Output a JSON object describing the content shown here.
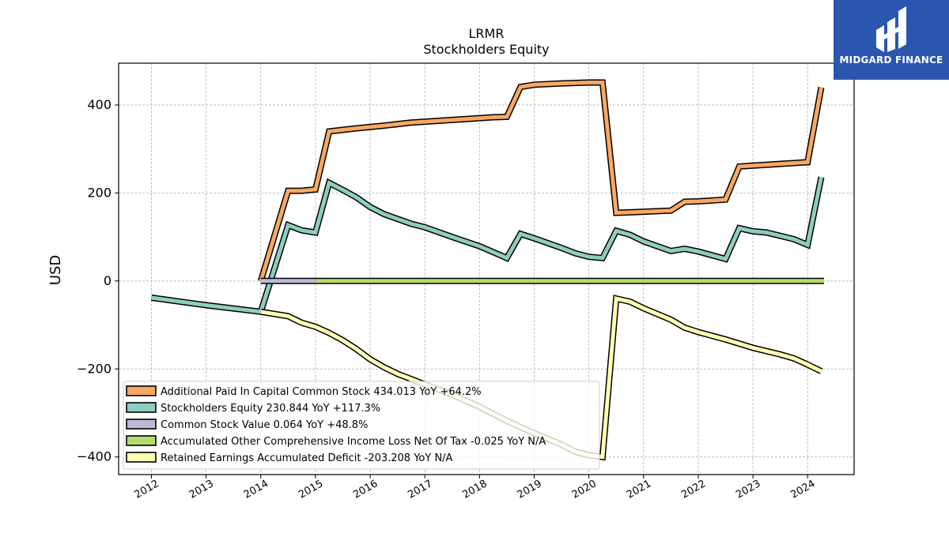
{
  "logo": {
    "text": "MIDGARD FINANCE"
  },
  "chart_data": {
    "type": "line",
    "title": "LRMR",
    "subtitle": "Stockholders  Equity",
    "ylabel": "USD",
    "xlim": [
      2011.4,
      2024.85
    ],
    "ylim": [
      -440,
      495
    ],
    "yticks": [
      400,
      200,
      0,
      -200,
      -400
    ],
    "ytick_labels": [
      "400",
      "200",
      "0",
      "−200",
      "−400"
    ],
    "xticks": [
      2012,
      2013,
      2014,
      2015,
      2016,
      2017,
      2018,
      2019,
      2020,
      2021,
      2022,
      2023,
      2024
    ],
    "grid": true,
    "legend_position": "lower-left",
    "series": [
      {
        "name": "Additional Paid In Capital Common Stock  434.013 YoY +64.2%",
        "color": "#f6a864",
        "points": [
          [
            2014.0,
            0
          ],
          [
            2014.5,
            205
          ],
          [
            2014.75,
            205
          ],
          [
            2015.0,
            208
          ],
          [
            2015.25,
            340
          ],
          [
            2015.75,
            347
          ],
          [
            2016.25,
            353
          ],
          [
            2016.75,
            360
          ],
          [
            2017.25,
            364
          ],
          [
            2017.75,
            368
          ],
          [
            2018.25,
            372
          ],
          [
            2018.5,
            373
          ],
          [
            2018.75,
            441
          ],
          [
            2019.0,
            446
          ],
          [
            2019.5,
            449
          ],
          [
            2020.0,
            451
          ],
          [
            2020.25,
            451
          ],
          [
            2020.5,
            155
          ],
          [
            2020.75,
            156
          ],
          [
            2021.5,
            160
          ],
          [
            2021.75,
            180
          ],
          [
            2022.0,
            181
          ],
          [
            2022.5,
            185
          ],
          [
            2022.75,
            260
          ],
          [
            2023.0,
            262
          ],
          [
            2023.75,
            268
          ],
          [
            2024.0,
            270
          ],
          [
            2024.25,
            440
          ]
        ]
      },
      {
        "name": "Stockholders Equity  230.844 YoY +117.3%",
        "color": "#8ecdc0",
        "points": [
          [
            2012.0,
            -38
          ],
          [
            2013.0,
            -55
          ],
          [
            2014.0,
            -70
          ],
          [
            2014.5,
            127
          ],
          [
            2014.75,
            115
          ],
          [
            2015.0,
            110
          ],
          [
            2015.25,
            223
          ],
          [
            2015.5,
            207
          ],
          [
            2015.75,
            190
          ],
          [
            2016.0,
            168
          ],
          [
            2016.25,
            152
          ],
          [
            2016.75,
            130
          ],
          [
            2017.0,
            122
          ],
          [
            2017.5,
            100
          ],
          [
            2018.0,
            79
          ],
          [
            2018.5,
            52
          ],
          [
            2018.75,
            107
          ],
          [
            2019.0,
            97
          ],
          [
            2019.5,
            75
          ],
          [
            2019.75,
            63
          ],
          [
            2020.0,
            55
          ],
          [
            2020.25,
            52
          ],
          [
            2020.5,
            114
          ],
          [
            2020.75,
            105
          ],
          [
            2021.0,
            90
          ],
          [
            2021.5,
            68
          ],
          [
            2021.75,
            73
          ],
          [
            2022.0,
            67
          ],
          [
            2022.5,
            50
          ],
          [
            2022.75,
            120
          ],
          [
            2023.0,
            113
          ],
          [
            2023.25,
            110
          ],
          [
            2023.75,
            95
          ],
          [
            2024.0,
            82
          ],
          [
            2024.25,
            236
          ]
        ]
      },
      {
        "name": "Common Stock Value  0.064 YoY +48.8%",
        "color": "#bcbad9",
        "points": [
          [
            2014.0,
            0.02
          ],
          [
            2015.0,
            0.03
          ]
        ]
      },
      {
        "name": "Accumulated Other Comprehensive Income Loss Net Of Tax  -0.025 YoY N/A",
        "color": "#b5db6e",
        "points": [
          [
            2015.0,
            0
          ],
          [
            2024.3,
            0
          ]
        ]
      },
      {
        "name": "Retained Earnings Accumulated Deficit  -203.208 YoY N/A",
        "color": "#ffffb4",
        "points": [
          [
            2014.0,
            -70
          ],
          [
            2014.5,
            -80
          ],
          [
            2014.75,
            -95
          ],
          [
            2015.0,
            -104
          ],
          [
            2015.25,
            -118
          ],
          [
            2015.5,
            -135
          ],
          [
            2015.75,
            -155
          ],
          [
            2016.0,
            -178
          ],
          [
            2016.25,
            -196
          ],
          [
            2016.5,
            -211
          ],
          [
            2016.75,
            -223
          ],
          [
            2017.0,
            -235
          ],
          [
            2017.5,
            -258
          ],
          [
            2018.0,
            -286
          ],
          [
            2018.5,
            -318
          ],
          [
            2019.0,
            -346
          ],
          [
            2019.5,
            -372
          ],
          [
            2019.75,
            -388
          ],
          [
            2020.0,
            -396
          ],
          [
            2020.25,
            -400
          ],
          [
            2020.5,
            -40
          ],
          [
            2020.75,
            -47
          ],
          [
            2021.0,
            -62
          ],
          [
            2021.5,
            -88
          ],
          [
            2021.75,
            -106
          ],
          [
            2022.0,
            -116
          ],
          [
            2022.5,
            -133
          ],
          [
            2023.0,
            -152
          ],
          [
            2023.5,
            -167
          ],
          [
            2023.75,
            -176
          ],
          [
            2024.0,
            -190
          ],
          [
            2024.25,
            -205
          ]
        ]
      }
    ]
  }
}
